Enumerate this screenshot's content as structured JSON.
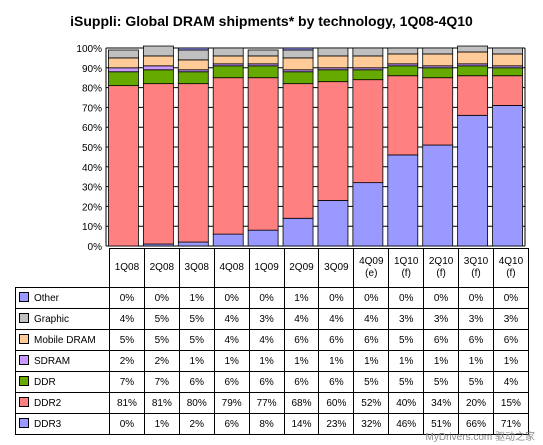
{
  "title": "iSuppli: Global DRAM shipments* by technology, 1Q08-4Q10",
  "watermark": "MyDrivers.com 驱动之家",
  "chart_data": {
    "type": "bar",
    "stacked": true,
    "title": "iSuppli: Global DRAM shipments* by technology, 1Q08-4Q10",
    "ylim": [
      0,
      100
    ],
    "yticks": [
      "0%",
      "10%",
      "20%",
      "30%",
      "40%",
      "50%",
      "60%",
      "70%",
      "80%",
      "90%",
      "100%"
    ],
    "grid": true,
    "categories": [
      [
        "1Q08"
      ],
      [
        "2Q08"
      ],
      [
        "3Q08"
      ],
      [
        "4Q08"
      ],
      [
        "1Q09"
      ],
      [
        "2Q09"
      ],
      [
        "3Q09"
      ],
      [
        "4Q09",
        "(e)"
      ],
      [
        "1Q10",
        "(f)"
      ],
      [
        "2Q10",
        "(f)"
      ],
      [
        "3Q10",
        "(f)"
      ],
      [
        "4Q10",
        "(f)"
      ]
    ],
    "series": [
      {
        "name": "Other",
        "color": "#9999ff",
        "values": [
          0,
          0,
          1,
          0,
          0,
          1,
          0,
          0,
          0,
          0,
          0,
          0
        ],
        "labels": [
          "0%",
          "0%",
          "1%",
          "0%",
          "0%",
          "1%",
          "0%",
          "0%",
          "0%",
          "0%",
          "0%",
          "0%"
        ]
      },
      {
        "name": "Graphic",
        "color": "#c0c0c0",
        "values": [
          4,
          5,
          5,
          4,
          3,
          4,
          4,
          4,
          3,
          3,
          3,
          3
        ],
        "labels": [
          "4%",
          "5%",
          "5%",
          "4%",
          "3%",
          "4%",
          "4%",
          "4%",
          "3%",
          "3%",
          "3%",
          "3%"
        ]
      },
      {
        "name": "Mobile DRAM",
        "color": "#ffcc99",
        "values": [
          5,
          5,
          5,
          4,
          4,
          6,
          6,
          6,
          5,
          6,
          6,
          6
        ],
        "labels": [
          "5%",
          "5%",
          "5%",
          "4%",
          "4%",
          "6%",
          "6%",
          "6%",
          "5%",
          "6%",
          "6%",
          "6%"
        ]
      },
      {
        "name": "SDRAM",
        "color": "#cc99ff",
        "values": [
          2,
          2,
          1,
          1,
          1,
          1,
          1,
          1,
          1,
          1,
          1,
          1
        ],
        "labels": [
          "2%",
          "2%",
          "1%",
          "1%",
          "1%",
          "1%",
          "1%",
          "1%",
          "1%",
          "1%",
          "1%",
          "1%"
        ]
      },
      {
        "name": "DDR",
        "color": "#66aa00",
        "values": [
          7,
          7,
          6,
          6,
          6,
          6,
          6,
          5,
          5,
          5,
          5,
          4
        ],
        "labels": [
          "7%",
          "7%",
          "6%",
          "6%",
          "6%",
          "6%",
          "6%",
          "5%",
          "5%",
          "5%",
          "5%",
          "4%"
        ]
      },
      {
        "name": "DDR2",
        "color": "#ff8080",
        "values": [
          81,
          81,
          80,
          79,
          77,
          68,
          60,
          52,
          40,
          34,
          20,
          15
        ],
        "labels": [
          "81%",
          "81%",
          "80%",
          "79%",
          "77%",
          "68%",
          "60%",
          "52%",
          "40%",
          "34%",
          "20%",
          "15%"
        ]
      },
      {
        "name": "DDR3",
        "color": "#9999ff",
        "values": [
          0,
          1,
          2,
          6,
          8,
          14,
          23,
          32,
          46,
          51,
          66,
          71
        ],
        "labels": [
          "0%",
          "1%",
          "2%",
          "6%",
          "8%",
          "14%",
          "23%",
          "32%",
          "46%",
          "51%",
          "66%",
          "71%"
        ]
      }
    ]
  }
}
